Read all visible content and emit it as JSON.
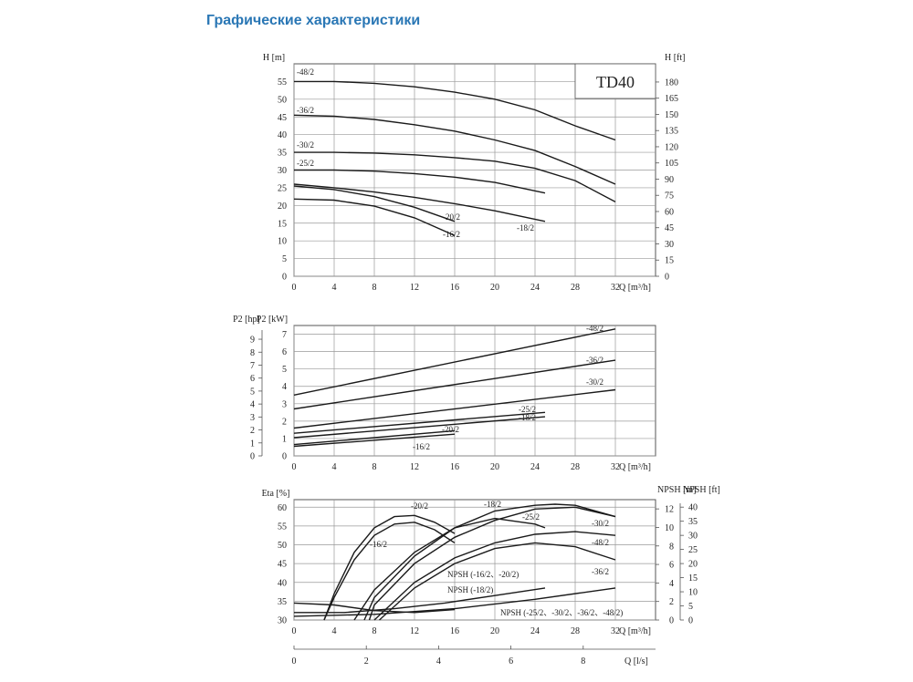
{
  "page": {
    "title": "Графические характеристики"
  },
  "chart_data": [
    {
      "type": "line",
      "title": "TD40",
      "xlabel": "Q [m³/h]",
      "ylabel": "H [m]",
      "ylabel_right": "H [ft]",
      "xlim": [
        0,
        36
      ],
      "ylim": [
        0,
        60
      ],
      "xticks": [
        0,
        4,
        8,
        12,
        16,
        20,
        24,
        28,
        32
      ],
      "yticks": [
        0,
        5,
        10,
        15,
        20,
        25,
        30,
        35,
        40,
        45,
        50,
        55
      ],
      "yticks_right": [
        0,
        15,
        30,
        45,
        60,
        75,
        90,
        105,
        120,
        135,
        150,
        165,
        180
      ],
      "grid": true,
      "series": [
        {
          "name": "-48/2",
          "x": [
            0,
            4,
            8,
            12,
            16,
            20,
            24,
            28,
            32
          ],
          "y": [
            55,
            55,
            54.5,
            53.5,
            52,
            50,
            47,
            42.5,
            38.5
          ]
        },
        {
          "name": "-36/2",
          "x": [
            0,
            4,
            8,
            12,
            16,
            20,
            24,
            28,
            32
          ],
          "y": [
            45.5,
            45.2,
            44.3,
            42.8,
            41,
            38.5,
            35.5,
            31,
            26
          ]
        },
        {
          "name": "-30/2",
          "x": [
            0,
            4,
            8,
            12,
            16,
            20,
            24,
            28,
            32
          ],
          "y": [
            35,
            35,
            34.8,
            34.3,
            33.5,
            32.5,
            30.5,
            27,
            21
          ]
        },
        {
          "name": "-25/2",
          "x": [
            0,
            4,
            8,
            12,
            16,
            20,
            25
          ],
          "y": [
            30,
            30,
            29.7,
            29,
            28,
            26.5,
            23.5
          ]
        },
        {
          "name": "-18/2",
          "x": [
            0,
            4,
            8,
            12,
            16,
            20,
            25
          ],
          "y": [
            26,
            25,
            23.8,
            22.3,
            20.5,
            18.5,
            15.5
          ]
        },
        {
          "name": "-20/2",
          "x": [
            0,
            4,
            8,
            12,
            16
          ],
          "y": [
            25.5,
            24.5,
            22.5,
            19.5,
            15.5
          ]
        },
        {
          "name": "-16/2",
          "x": [
            0,
            4,
            8,
            12,
            16
          ],
          "y": [
            21.8,
            21.5,
            19.8,
            16.5,
            11.5
          ]
        }
      ]
    },
    {
      "type": "line",
      "xlabel": "Q [m³/h]",
      "ylabel": "P2 [kW]",
      "ylabel_left2": "P2 [hp]",
      "xlim": [
        0,
        36
      ],
      "ylim": [
        0,
        7.5
      ],
      "xticks": [
        0,
        4,
        8,
        12,
        16,
        20,
        24,
        28,
        32
      ],
      "yticks": [
        0,
        1,
        2,
        3,
        4,
        5,
        6,
        7
      ],
      "yticks_hp": [
        0,
        1,
        2,
        3,
        4,
        5,
        6,
        7,
        8,
        9
      ],
      "grid": true,
      "series": [
        {
          "name": "-48/2",
          "x": [
            0,
            32
          ],
          "y": [
            3.5,
            7.3
          ]
        },
        {
          "name": "-36/2",
          "x": [
            0,
            32
          ],
          "y": [
            2.7,
            5.5
          ]
        },
        {
          "name": "-30/2",
          "x": [
            0,
            32
          ],
          "y": [
            1.6,
            3.8
          ]
        },
        {
          "name": "-25/2",
          "x": [
            0,
            25
          ],
          "y": [
            1.3,
            2.5
          ]
        },
        {
          "name": "-18/2",
          "x": [
            0,
            25
          ],
          "y": [
            1.05,
            2.25
          ]
        },
        {
          "name": "-20/2",
          "x": [
            0,
            16
          ],
          "y": [
            0.65,
            1.45
          ]
        },
        {
          "name": "-16/2",
          "x": [
            0,
            16
          ],
          "y": [
            0.55,
            1.25
          ]
        }
      ]
    },
    {
      "type": "line",
      "xlabel": "Q [m³/h]",
      "xlabel_secondary": "Q [l/s]",
      "ylabel": "Eta [%]",
      "ylabel_right": "NPSH [m]",
      "ylabel_right2": "NPSH [ft]",
      "xlim": [
        0,
        36
      ],
      "ylim": [
        30,
        62
      ],
      "xticks": [
        0,
        4,
        8,
        12,
        16,
        20,
        24,
        28,
        32
      ],
      "xticks_secondary": [
        0,
        2,
        4,
        6,
        8
      ],
      "yticks": [
        30,
        35,
        40,
        45,
        50,
        55,
        60
      ],
      "yticks_npsh_m": [
        0,
        2,
        4,
        6,
        8,
        10,
        12
      ],
      "yticks_npsh_ft": [
        0,
        5,
        10,
        15,
        20,
        25,
        30,
        35,
        40
      ],
      "grid": true,
      "series": [
        {
          "name": "-20/2",
          "x": [
            3,
            4,
            6,
            8,
            10,
            12,
            14,
            16
          ],
          "y": [
            30,
            37,
            48,
            54.5,
            57.5,
            57.8,
            56,
            53
          ]
        },
        {
          "name": "-16/2",
          "x": [
            3,
            4,
            6,
            8,
            10,
            12,
            14,
            16
          ],
          "y": [
            30,
            36,
            46,
            52.5,
            55.5,
            56,
            54,
            50.5
          ]
        },
        {
          "name": "-18/2",
          "x": [
            6,
            8,
            12,
            16,
            20,
            24,
            25
          ],
          "y": [
            30,
            38,
            48,
            54.5,
            57,
            55.5,
            54.5
          ]
        },
        {
          "name": "-25/2",
          "x": [
            7,
            8,
            12,
            16,
            20,
            24,
            26,
            28,
            32
          ],
          "y": [
            30,
            36,
            47,
            54.5,
            59,
            60.5,
            60.8,
            60.5,
            57.5
          ]
        },
        {
          "name": "-30/2",
          "x": [
            7.5,
            8,
            12,
            16,
            20,
            24,
            28,
            32
          ],
          "y": [
            30,
            34,
            45,
            52,
            56.5,
            59.5,
            60,
            57.5
          ]
        },
        {
          "name": "-48/2",
          "x": [
            8,
            12,
            16,
            20,
            24,
            28,
            32
          ],
          "y": [
            30,
            40,
            46.5,
            50.5,
            52.8,
            53.5,
            52.5
          ]
        },
        {
          "name": "-36/2",
          "x": [
            8.5,
            12,
            16,
            20,
            24,
            28,
            32
          ],
          "y": [
            30,
            38.5,
            45,
            49,
            50.5,
            49.5,
            46
          ]
        },
        {
          "name": "NPSH (-16/2、-20/2)",
          "x": [
            0,
            4,
            8,
            12,
            16
          ],
          "y": [
            34.5,
            34,
            32.5,
            32,
            32.8
          ]
        },
        {
          "name": "NPSH (-18/2)",
          "x": [
            0,
            5,
            10,
            15,
            20,
            25
          ],
          "y": [
            32,
            32,
            33,
            34.5,
            36.5,
            38.5
          ]
        },
        {
          "name": "NPSH (-25/2、-30/2、-36/2、-48/2)",
          "x": [
            0,
            8,
            16,
            24,
            32
          ],
          "y": [
            31,
            31.5,
            33,
            35.5,
            38.5
          ]
        }
      ]
    }
  ]
}
